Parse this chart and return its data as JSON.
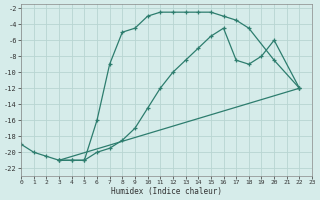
{
  "xlabel": "Humidex (Indice chaleur)",
  "xlim": [
    0,
    23
  ],
  "ylim": [
    -23,
    -1.5
  ],
  "xticks": [
    0,
    1,
    2,
    3,
    4,
    5,
    6,
    7,
    8,
    9,
    10,
    11,
    12,
    13,
    14,
    15,
    16,
    17,
    18,
    19,
    20,
    21,
    22,
    23
  ],
  "yticks": [
    -2,
    -4,
    -6,
    -8,
    -10,
    -12,
    -14,
    -16,
    -18,
    -20,
    -22
  ],
  "bg_color": "#d6ecea",
  "grid_color": "#b8d5d2",
  "line_color": "#2d7d6e",
  "curve1_x": [
    0,
    1,
    2,
    3,
    4,
    5,
    6,
    7,
    8,
    9,
    10,
    11,
    12,
    13,
    14,
    15,
    16,
    17,
    18,
    20,
    22
  ],
  "curve1_y": [
    -19,
    -20,
    -20.5,
    -21,
    -21,
    -21,
    -16,
    -9,
    -5,
    -4.5,
    -3,
    -2.5,
    -2.5,
    -2.5,
    -2.5,
    -2.5,
    -3,
    -3.5,
    -4.5,
    -8.5,
    -12
  ],
  "curve2_x": [
    3,
    4,
    5,
    6,
    7,
    8,
    9,
    10,
    11,
    12,
    13,
    14,
    15,
    16,
    17,
    18,
    19,
    20,
    22
  ],
  "curve2_y": [
    -21,
    -21,
    -21,
    -20,
    -19.5,
    -18.5,
    -17,
    -14.5,
    -12,
    -10,
    -8.5,
    -7,
    -5.5,
    -4.5,
    -8.5,
    -9,
    -8,
    -6,
    -12
  ],
  "curve3_x": [
    3,
    22
  ],
  "curve3_y": [
    -21,
    -12
  ]
}
